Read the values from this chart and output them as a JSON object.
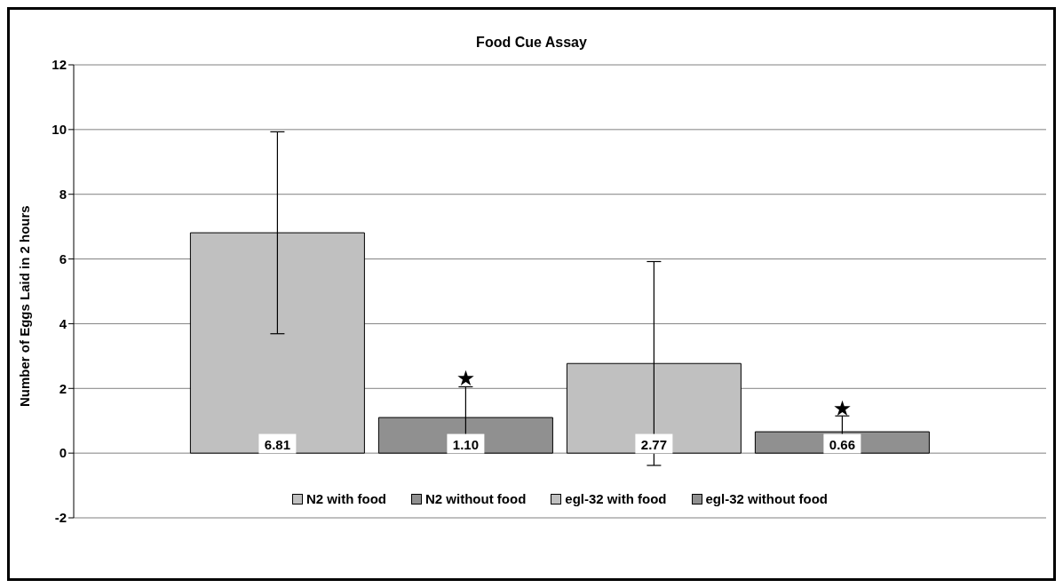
{
  "chart_data": {
    "type": "bar",
    "title": "Food Cue Assay",
    "ylabel": "Number of Eggs Laid in 2 hours",
    "categories": [
      null
    ],
    "series": [
      {
        "name": "N2 with food",
        "color": "#c0c0c0",
        "values": [
          6.81
        ],
        "errors": [
          3.12
        ]
      },
      {
        "name": "N2 without food",
        "color": "#909090",
        "values": [
          1.1
        ],
        "errors": [
          0.95
        ]
      },
      {
        "name": "egl-32 with food",
        "color": "#c0c0c0",
        "values": [
          2.77
        ],
        "errors": [
          3.15
        ]
      },
      {
        "name": "egl-32 without food",
        "color": "#909090",
        "values": [
          0.66
        ],
        "errors": [
          0.49
        ]
      }
    ],
    "value_labels": [
      "6.81",
      "1.10",
      "2.77",
      "0.66"
    ],
    "annotations": [
      "★",
      "★"
    ],
    "ylim": [
      -2,
      12
    ],
    "yticks": [
      -2,
      0,
      2,
      4,
      6,
      8,
      10,
      12
    ],
    "grid": "y",
    "legend": "bottom"
  }
}
